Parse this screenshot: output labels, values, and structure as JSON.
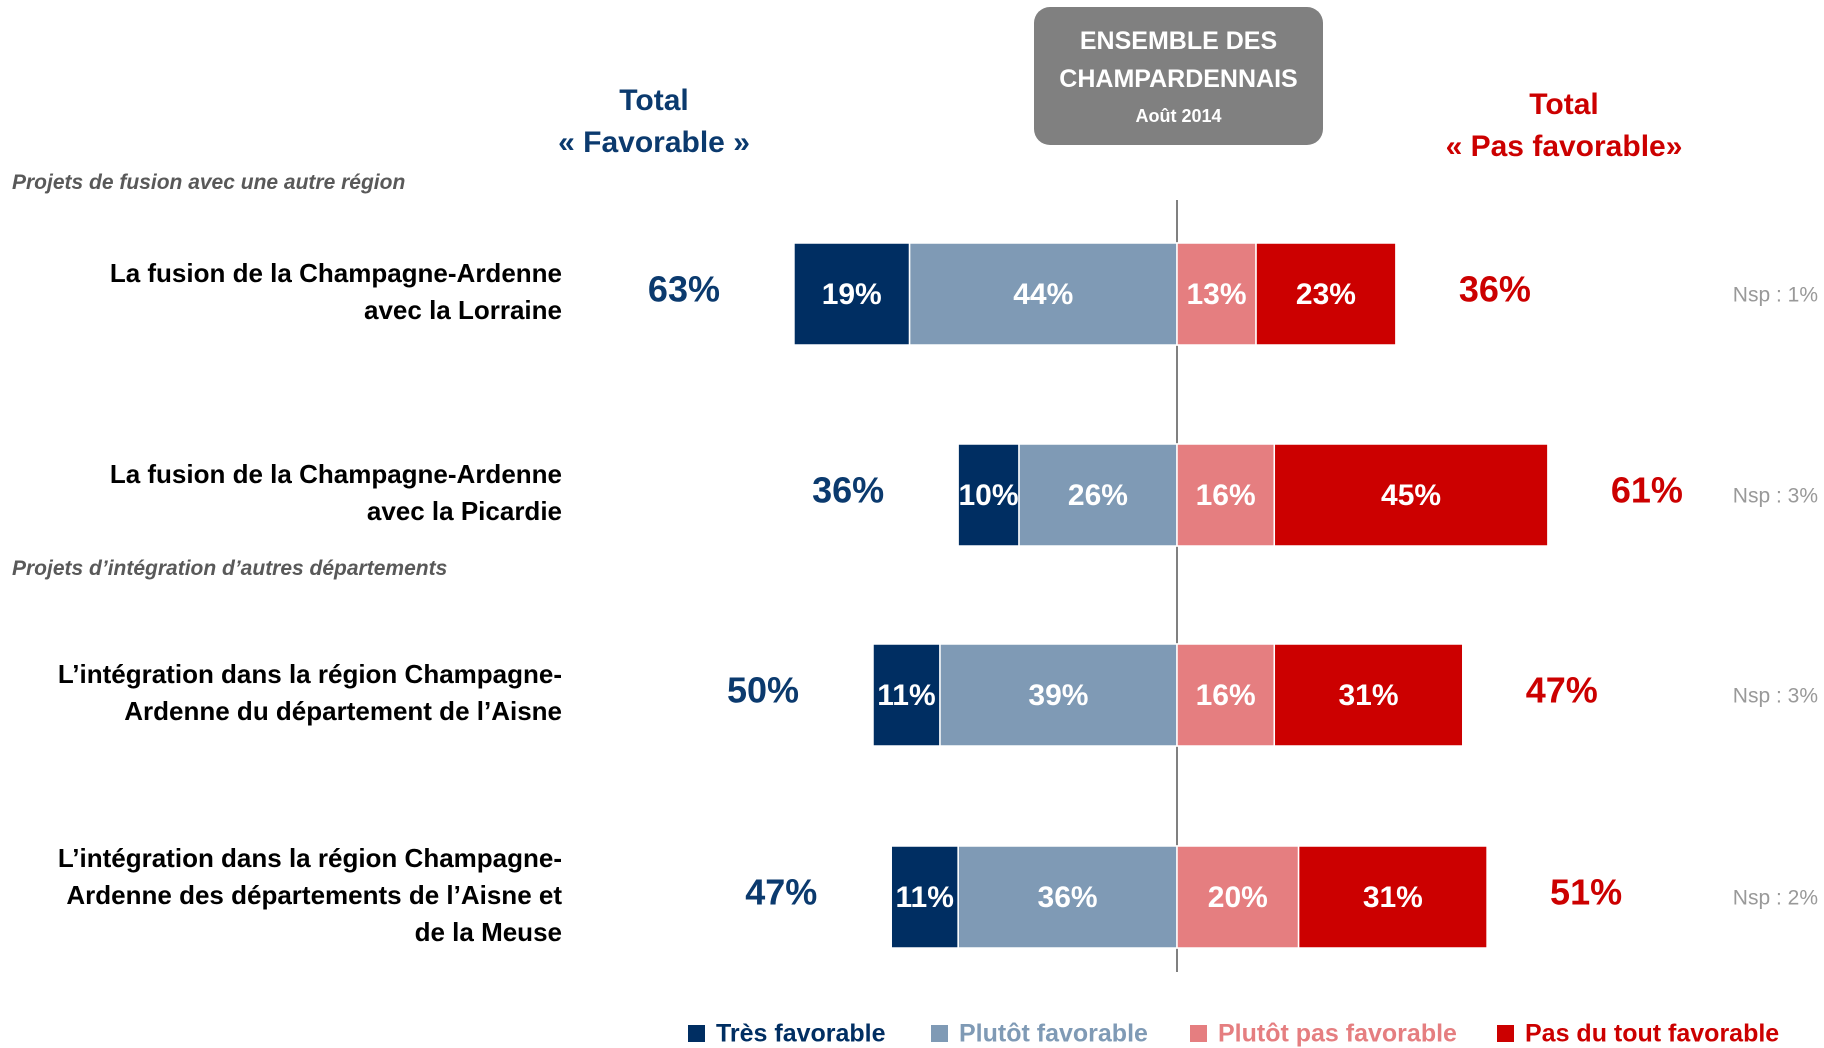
{
  "chart_data": {
    "type": "bar",
    "orientation": "horizontal",
    "header_left": "Total\n« Favorable »",
    "header_center": "ENSEMBLE DES\nCHAMPARDENNAIS",
    "header_center_sub": "Août 2014",
    "header_right": "Total\n« Pas favorable»",
    "group_labels": [
      "Projets de fusion avec une autre région",
      null,
      "Projets d’intégration d’autres départements",
      null
    ],
    "categories": [
      "La fusion de la Champagne-Ardenne\navec la Lorraine",
      "La fusion de la Champagne-Ardenne\navec la Picardie",
      "L’intégration dans la région Champagne-\nArdenne du département de l’Aisne",
      "L’intégration dans la région Champagne-\nArdenne des départements de l’Aisne et\nde la Meuse"
    ],
    "series": [
      {
        "name": "Très favorable",
        "color": "#002e62",
        "values": [
          19,
          10,
          11,
          11
        ],
        "value_labels": [
          "19%",
          "10%",
          "11%",
          "11%"
        ]
      },
      {
        "name": "Plutôt favorable",
        "color": "#7f9ab5",
        "values": [
          44,
          26,
          39,
          36
        ],
        "value_labels": [
          "44%",
          "26%",
          "39%",
          "36%"
        ]
      },
      {
        "name": "Plutôt pas favorable",
        "color": "#e57e80",
        "values": [
          13,
          16,
          16,
          20
        ],
        "value_labels": [
          "13%",
          "16%",
          "16%",
          "20%"
        ]
      },
      {
        "name": "Pas du tout favorable",
        "color": "#cc0000",
        "values": [
          23,
          45,
          31,
          31
        ],
        "value_labels": [
          "23%",
          "45%",
          "31%",
          "31%"
        ]
      }
    ],
    "total_favorable": {
      "color": "#0b3a6e",
      "values": [
        63,
        36,
        50,
        47
      ],
      "value_labels": [
        "63%",
        "36%",
        "50%",
        "47%"
      ]
    },
    "total_unfavorable": {
      "color": "#cc0000",
      "values": [
        36,
        61,
        47,
        51
      ],
      "value_labels": [
        "36%",
        "61%",
        "47%",
        "51%"
      ]
    },
    "nsp": {
      "values": [
        1,
        3,
        3,
        2
      ],
      "value_labels": [
        "Nsp : 1%",
        "Nsp : 3%",
        "Nsp : 3%",
        "Nsp : 2%"
      ]
    }
  }
}
